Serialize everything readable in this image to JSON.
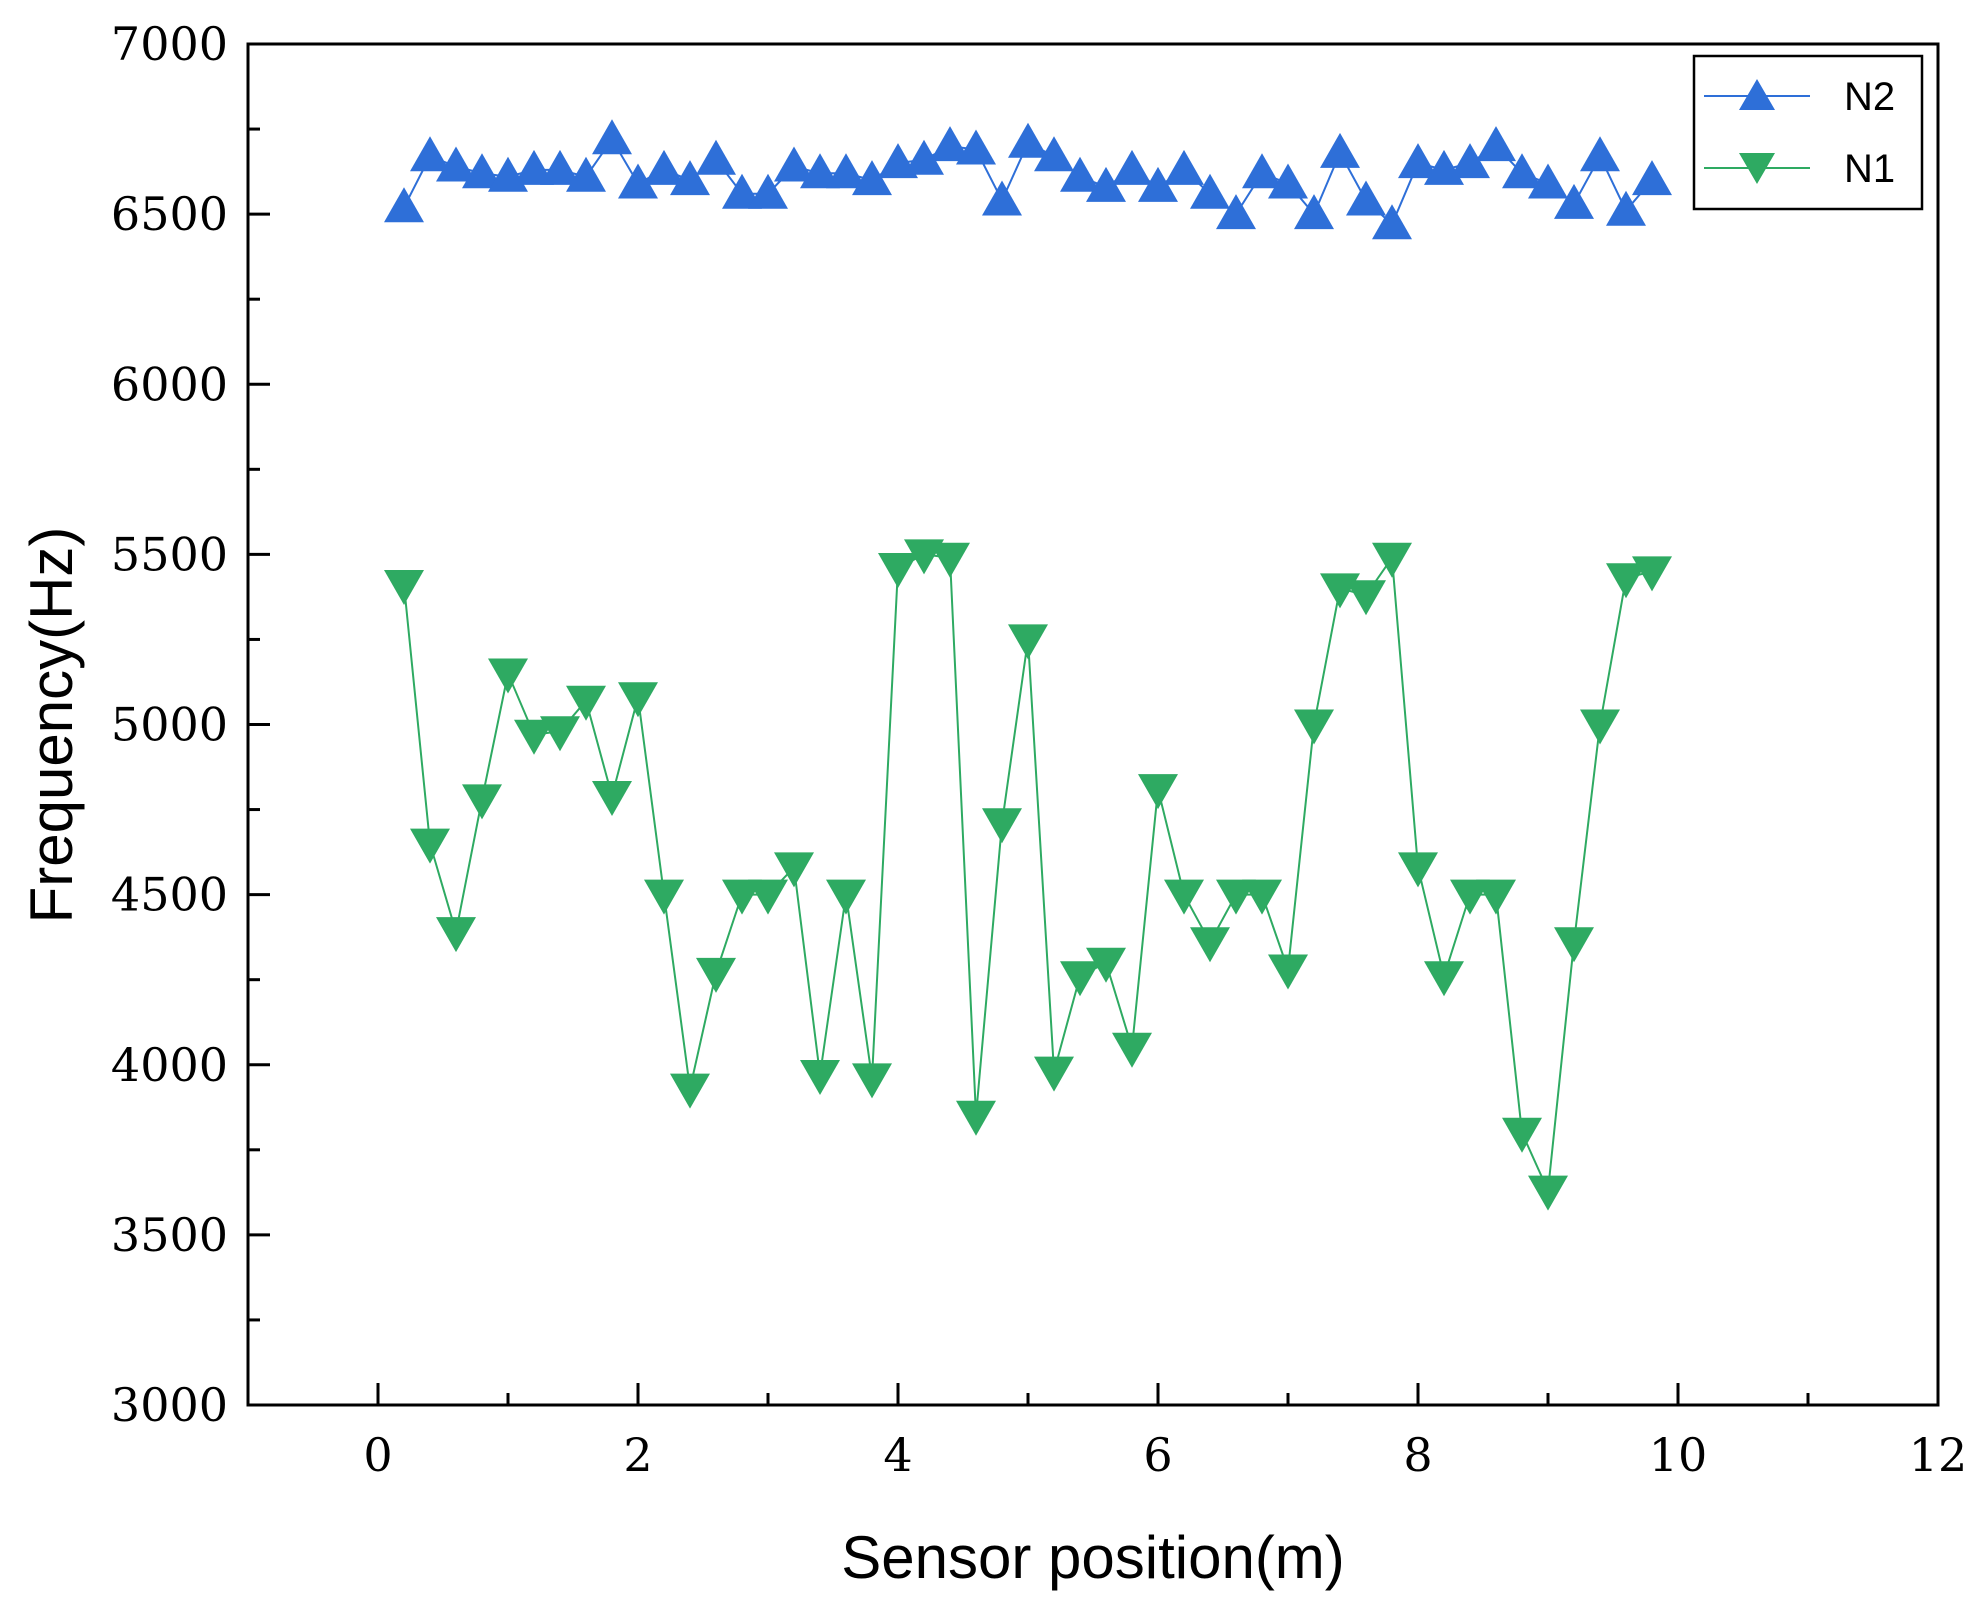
{
  "chart_data": {
    "type": "line",
    "title": "",
    "xlabel": "Sensor position(m)",
    "ylabel": "Frequency(Hz)",
    "xlim": [
      -1,
      12
    ],
    "ylim": [
      3000,
      7000
    ],
    "xticks": [
      "0",
      "2",
      "4",
      "6",
      "8",
      "10",
      "12"
    ],
    "yticks": [
      "3000",
      "3500",
      "4000",
      "4500",
      "5000",
      "5500",
      "6000",
      "6500",
      "7000"
    ],
    "grid": false,
    "legend_position": "top-right",
    "x": [
      0.2,
      0.4,
      0.6,
      0.8,
      1.0,
      1.2,
      1.4,
      1.6,
      1.8,
      2.0,
      2.2,
      2.4,
      2.6,
      2.8,
      3.0,
      3.2,
      3.4,
      3.6,
      3.8,
      4.0,
      4.2,
      4.4,
      4.6,
      4.8,
      5.0,
      5.2,
      5.4,
      5.6,
      5.8,
      6.0,
      6.2,
      6.4,
      6.6,
      6.8,
      7.0,
      7.2,
      7.4,
      7.6,
      7.8,
      8.0,
      8.2,
      8.4,
      8.6,
      8.8,
      9.0,
      9.2,
      9.4,
      9.6,
      9.8
    ],
    "series": [
      {
        "name": "N2",
        "color": "#2E6FD8",
        "marker": "triangle-up",
        "values": [
          6520,
          6670,
          6640,
          6620,
          6610,
          6630,
          6630,
          6610,
          6720,
          6590,
          6630,
          6600,
          6660,
          6560,
          6560,
          6640,
          6620,
          6620,
          6600,
          6650,
          6660,
          6700,
          6690,
          6540,
          6710,
          6670,
          6610,
          6580,
          6630,
          6580,
          6630,
          6560,
          6500,
          6620,
          6590,
          6500,
          6680,
          6540,
          6470,
          6650,
          6630,
          6650,
          6700,
          6620,
          6590,
          6530,
          6670,
          6510,
          6600
        ]
      },
      {
        "name": "N1",
        "color": "#2EAA62",
        "marker": "triangle-down",
        "values": [
          5410,
          4650,
          4390,
          4780,
          5150,
          4970,
          4980,
          5070,
          4790,
          5080,
          4500,
          3930,
          4270,
          4500,
          4500,
          4580,
          3970,
          4500,
          3960,
          5460,
          5500,
          5490,
          3850,
          4710,
          5250,
          3980,
          4260,
          4300,
          4050,
          4810,
          4500,
          4360,
          4500,
          4500,
          4280,
          5000,
          5400,
          5380,
          5490,
          4580,
          4260,
          4500,
          4500,
          3800,
          3630,
          4360,
          5000,
          5430,
          5450
        ]
      }
    ]
  }
}
